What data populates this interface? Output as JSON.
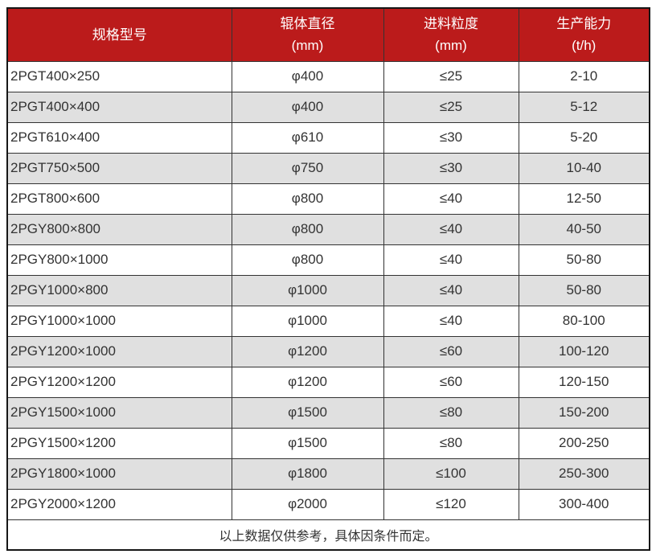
{
  "table": {
    "headers": [
      {
        "line1": "规格型号",
        "line2": ""
      },
      {
        "line1": "辊体直径",
        "line2": "(mm)"
      },
      {
        "line1": "进料粒度",
        "line2": "(mm)"
      },
      {
        "line1": "生产能力",
        "line2": "(t/h)"
      }
    ],
    "rows": [
      [
        "2PGT400×250",
        "φ400",
        "≤25",
        "2-10"
      ],
      [
        "2PGT400×400",
        "φ400",
        "≤25",
        "5-12"
      ],
      [
        "2PGT610×400",
        "φ610",
        "≤30",
        "5-20"
      ],
      [
        "2PGT750×500",
        "φ750",
        "≤30",
        "10-40"
      ],
      [
        "2PGT800×600",
        "φ800",
        "≤40",
        "12-50"
      ],
      [
        "2PGY800×800",
        "φ800",
        "≤40",
        "40-50"
      ],
      [
        "2PGY800×1000",
        "φ800",
        "≤40",
        "50-80"
      ],
      [
        "2PGY1000×800",
        "φ1000",
        "≤40",
        "50-80"
      ],
      [
        "2PGY1000×1000",
        "φ1000",
        "≤40",
        "80-100"
      ],
      [
        "2PGY1200×1000",
        "φ1200",
        "≤60",
        "100-120"
      ],
      [
        "2PGY1200×1200",
        "φ1200",
        "≤60",
        "120-150"
      ],
      [
        "2PGY1500×1000",
        "φ1500",
        "≤80",
        "150-200"
      ],
      [
        "2PGY1500×1200",
        "φ1500",
        "≤80",
        "200-250"
      ],
      [
        "2PGY1800×1000",
        "φ1800",
        "≤100",
        "250-300"
      ],
      [
        "2PGY2000×1200",
        "φ2000",
        "≤120",
        "300-400"
      ]
    ],
    "footer_note": "以上数据仅供参考，具体因条件而定。"
  },
  "colors": {
    "header_bg": "#bb1b1b",
    "header_text": "#ffffff",
    "row_alt_bg": "#e0e0e0",
    "row_bg": "#ffffff",
    "border": "#333333",
    "outer_border": "#161616",
    "text": "#333333"
  }
}
